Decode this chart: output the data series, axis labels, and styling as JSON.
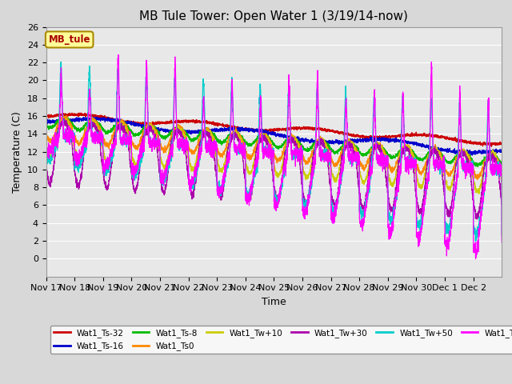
{
  "title": "MB Tule Tower: Open Water 1 (3/19/14-now)",
  "xlabel": "Time",
  "ylabel": "Temperature (C)",
  "ylim": [
    -2,
    26
  ],
  "yticks": [
    0,
    2,
    4,
    6,
    8,
    10,
    12,
    14,
    16,
    18,
    20,
    22,
    24,
    26
  ],
  "x_labels": [
    "Nov 17",
    "Nov 18",
    "Nov 19",
    "Nov 20",
    "Nov 21",
    "Nov 22",
    "Nov 23",
    "Nov 24",
    "Nov 25",
    "Nov 26",
    "Nov 27",
    "Nov 28",
    "Nov 29",
    "Nov 30",
    "Dec 1",
    "Dec 2"
  ],
  "series": {
    "Wat1_Ts-32": {
      "color": "#cc0000"
    },
    "Wat1_Ts-16": {
      "color": "#0000cc"
    },
    "Wat1_Ts-8": {
      "color": "#00bb00"
    },
    "Wat1_Ts0": {
      "color": "#ff8800"
    },
    "Wat1_Tw+10": {
      "color": "#cccc00"
    },
    "Wat1_Tw+30": {
      "color": "#aa00aa"
    },
    "Wat1_Tw+50": {
      "color": "#00cccc"
    },
    "Wat1_Tw100": {
      "color": "#ff00ff"
    }
  },
  "background_color": "#d8d8d8",
  "plot_bg_color": "#e8e8e8",
  "grid_color": "#ffffff",
  "annotation_box": {
    "text": "MB_tule",
    "bg": "#ffff99",
    "edge": "#aa8800",
    "text_color": "#aa0000"
  },
  "title_fontsize": 11,
  "label_fontsize": 9,
  "tick_fontsize": 8
}
